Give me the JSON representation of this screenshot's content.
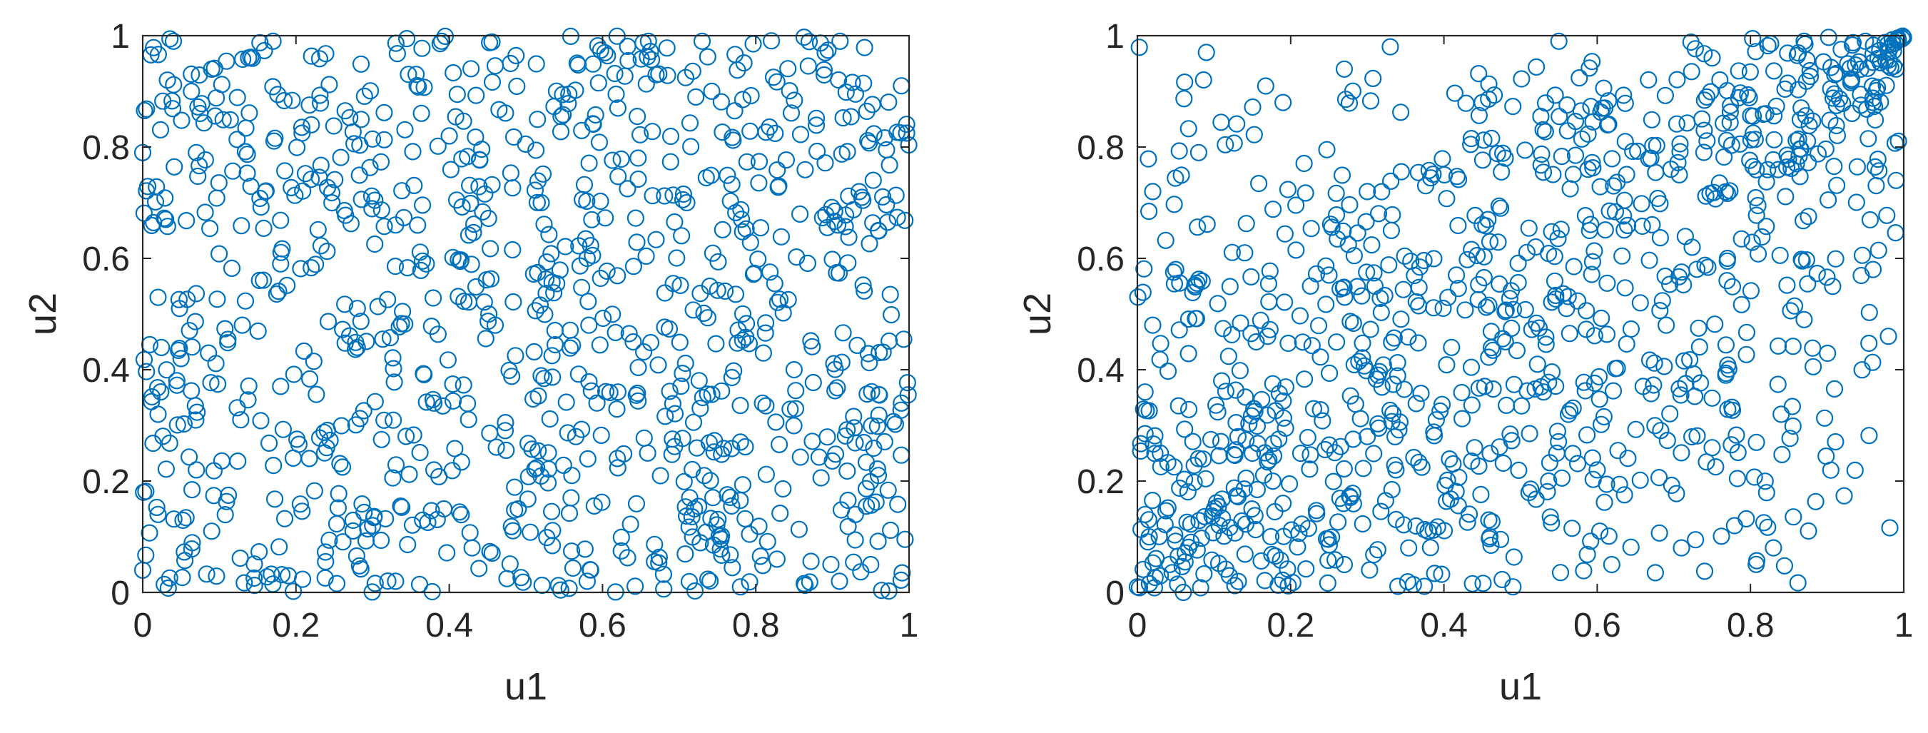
{
  "figure": {
    "marker_color": "#0072BD",
    "axis_color": "#262626",
    "background": "#ffffff"
  },
  "chart_data": [
    {
      "type": "scatter",
      "title": "",
      "xlabel": "u1",
      "ylabel": "u2",
      "xlim": [
        0,
        1
      ],
      "ylim": [
        0,
        1
      ],
      "xticks": [
        "0",
        "0.2",
        "0.4",
        "0.6",
        "0.8",
        "1"
      ],
      "yticks": [
        "0",
        "0.2",
        "0.4",
        "0.6",
        "0.8",
        "1"
      ],
      "grid": false,
      "legend": "none",
      "marker": "open-circle",
      "dependence": "independent",
      "approx_point_count": 1000,
      "sample_points": [
        [
          0.04,
          0.99
        ],
        [
          0.17,
          0.99
        ],
        [
          0.39,
          0.99
        ],
        [
          0.48,
          0.95
        ],
        [
          0.66,
          0.99
        ],
        [
          0.91,
          0.99
        ],
        [
          0.0,
          0.79
        ],
        [
          0.07,
          0.79
        ],
        [
          0.22,
          0.84
        ],
        [
          0.4,
          0.82
        ],
        [
          0.62,
          0.87
        ],
        [
          0.73,
          0.99
        ],
        [
          0.99,
          0.91
        ],
        [
          0.03,
          0.67
        ],
        [
          0.16,
          0.72
        ],
        [
          0.33,
          0.66
        ],
        [
          0.52,
          0.7
        ],
        [
          0.71,
          0.7
        ],
        [
          0.83,
          0.73
        ],
        [
          0.02,
          0.53
        ],
        [
          0.18,
          0.59
        ],
        [
          0.37,
          0.59
        ],
        [
          0.58,
          0.6
        ],
        [
          0.74,
          0.55
        ],
        [
          0.96,
          0.65
        ],
        [
          0.05,
          0.42
        ],
        [
          0.13,
          0.48
        ],
        [
          0.28,
          0.44
        ],
        [
          0.46,
          0.48
        ],
        [
          0.64,
          0.45
        ],
        [
          0.81,
          0.43
        ],
        [
          0.99,
          0.34
        ],
        [
          0.02,
          0.32
        ],
        [
          0.18,
          0.37
        ],
        [
          0.38,
          0.34
        ],
        [
          0.62,
          0.36
        ],
        [
          0.85,
          0.4
        ],
        [
          0.07,
          0.22
        ],
        [
          0.24,
          0.26
        ],
        [
          0.38,
          0.22
        ],
        [
          0.56,
          0.21
        ],
        [
          0.78,
          0.27
        ],
        [
          0.96,
          0.21
        ],
        [
          0.02,
          0.14
        ],
        [
          0.09,
          0.11
        ],
        [
          0.3,
          0.12
        ],
        [
          0.49,
          0.15
        ],
        [
          0.72,
          0.15
        ],
        [
          0.93,
          0.14
        ],
        [
          0.0,
          0.04
        ],
        [
          0.19,
          0.03
        ],
        [
          0.33,
          0.02
        ],
        [
          0.58,
          0.02
        ],
        [
          0.78,
          0.01
        ],
        [
          0.95,
          0.05
        ]
      ]
    },
    {
      "type": "scatter",
      "title": "",
      "xlabel": "u1",
      "ylabel": "u2",
      "xlim": [
        0,
        1
      ],
      "ylim": [
        0,
        1
      ],
      "xticks": [
        "0",
        "0.2",
        "0.4",
        "0.6",
        "0.8",
        "1"
      ],
      "yticks": [
        "0",
        "0.2",
        "0.4",
        "0.6",
        "0.8",
        "1"
      ],
      "grid": false,
      "legend": "none",
      "marker": "open-circle",
      "dependence": "positive-tail",
      "approx_point_count": 1000,
      "sample_points": [
        [
          0.09,
          0.97
        ],
        [
          0.33,
          0.98
        ],
        [
          0.55,
          0.99
        ],
        [
          0.75,
          0.96
        ],
        [
          0.87,
          0.99
        ],
        [
          0.95,
          0.99
        ],
        [
          0.98,
          0.97
        ],
        [
          0.99,
          0.94
        ],
        [
          0.91,
          0.93
        ],
        [
          0.96,
          0.88
        ],
        [
          0.19,
          0.88
        ],
        [
          0.27,
          0.94
        ],
        [
          0.45,
          0.88
        ],
        [
          0.61,
          0.87
        ],
        [
          0.82,
          0.86
        ],
        [
          0.02,
          0.72
        ],
        [
          0.08,
          0.79
        ],
        [
          0.3,
          0.72
        ],
        [
          0.48,
          0.78
        ],
        [
          0.67,
          0.78
        ],
        [
          0.86,
          0.77
        ],
        [
          0.99,
          0.74
        ],
        [
          0.05,
          0.58
        ],
        [
          0.14,
          0.61
        ],
        [
          0.31,
          0.55
        ],
        [
          0.46,
          0.63
        ],
        [
          0.59,
          0.65
        ],
        [
          0.77,
          0.6
        ],
        [
          0.96,
          0.58
        ],
        [
          0.02,
          0.48
        ],
        [
          0.17,
          0.46
        ],
        [
          0.25,
          0.57
        ],
        [
          0.41,
          0.44
        ],
        [
          0.56,
          0.51
        ],
        [
          0.69,
          0.48
        ],
        [
          0.87,
          0.49
        ],
        [
          0.98,
          0.46
        ],
        [
          0.01,
          0.36
        ],
        [
          0.11,
          0.38
        ],
        [
          0.23,
          0.33
        ],
        [
          0.39,
          0.31
        ],
        [
          0.53,
          0.36
        ],
        [
          0.66,
          0.37
        ],
        [
          0.84,
          0.32
        ],
        [
          0.03,
          0.25
        ],
        [
          0.15,
          0.25
        ],
        [
          0.3,
          0.28
        ],
        [
          0.44,
          0.26
        ],
        [
          0.6,
          0.22
        ],
        [
          0.75,
          0.26
        ],
        [
          0.01,
          0.14
        ],
        [
          0.07,
          0.09
        ],
        [
          0.19,
          0.16
        ],
        [
          0.27,
          0.05
        ],
        [
          0.46,
          0.1
        ],
        [
          0.71,
          0.08
        ],
        [
          0.83,
          0.08
        ],
        [
          0.0,
          0.01
        ],
        [
          0.03,
          0.03
        ],
        [
          0.06,
          0.0
        ],
        [
          0.12,
          0.03
        ],
        [
          0.49,
          0.01
        ]
      ]
    }
  ]
}
